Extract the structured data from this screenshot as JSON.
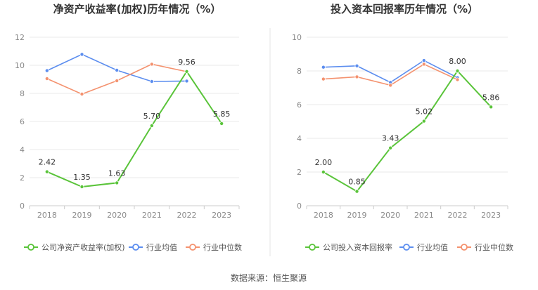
{
  "colors": {
    "company": "#5ac43a",
    "industry_avg": "#5b8def",
    "industry_median": "#f4926f",
    "grid": "#e8e8e8",
    "axis": "#cccccc",
    "divider": "#e6e6e6"
  },
  "legend": {
    "industry_avg": "行业均值",
    "industry_median": "行业中位数"
  },
  "source": "数据来源：恒生聚源",
  "chart_data": [
    {
      "type": "line",
      "title": "净资产收益率(加权)历年情况（%）",
      "categories": [
        "2018",
        "2019",
        "2020",
        "2021",
        "2022",
        "2023"
      ],
      "ylim": [
        0,
        12
      ],
      "yticks": [
        0,
        2,
        4,
        6,
        8,
        10,
        12
      ],
      "grid": true,
      "legend_position": "bottom",
      "series": [
        {
          "name": "公司净资产收益率(加权)",
          "key": "company",
          "values": [
            2.42,
            1.35,
            1.63,
            5.7,
            9.56,
            5.85
          ],
          "labels": [
            "2.42",
            "1.35",
            "1.63",
            "5.70",
            "9.56",
            "5.85"
          ]
        },
        {
          "name": "行业均值",
          "key": "industry_avg",
          "values": [
            9.62,
            10.78,
            9.65,
            8.85,
            8.88,
            null
          ]
        },
        {
          "name": "行业中位数",
          "key": "industry_median",
          "values": [
            9.05,
            7.95,
            8.9,
            10.08,
            9.55,
            null
          ]
        }
      ]
    },
    {
      "type": "line",
      "title": "投入资本回报率历年情况（%）",
      "categories": [
        "2018",
        "2019",
        "2020",
        "2021",
        "2022",
        "2023"
      ],
      "ylim": [
        0,
        10
      ],
      "yticks": [
        0,
        2,
        4,
        6,
        8,
        10
      ],
      "grid": true,
      "legend_position": "bottom",
      "series": [
        {
          "name": "公司投入资本回报率",
          "key": "company",
          "values": [
            2.0,
            0.85,
            3.43,
            5.02,
            8.0,
            5.86
          ],
          "labels": [
            "2.00",
            "0.85",
            "3.43",
            "5.02",
            "8.00",
            "5.86"
          ]
        },
        {
          "name": "行业均值",
          "key": "industry_avg",
          "values": [
            8.22,
            8.3,
            7.32,
            8.62,
            7.6,
            null
          ]
        },
        {
          "name": "行业中位数",
          "key": "industry_median",
          "values": [
            7.52,
            7.65,
            7.15,
            8.4,
            7.48,
            null
          ]
        }
      ]
    }
  ]
}
